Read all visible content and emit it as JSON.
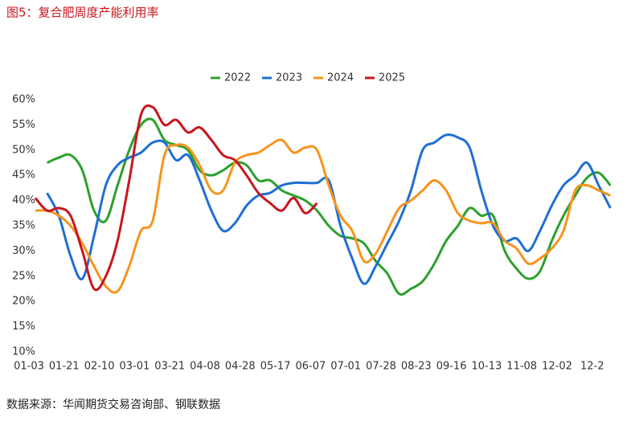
{
  "chart_data": {
    "type": "line",
    "title": "图5：复合肥周度产能利用率",
    "source": "数据来源：华闻期货交易咨询部、钢联数据",
    "categories": [
      "01-03",
      null,
      null,
      "01-21",
      null,
      null,
      "02-10",
      null,
      null,
      "03-01",
      null,
      null,
      "03-21",
      null,
      null,
      "04-08",
      null,
      null,
      "04-28",
      null,
      null,
      "05-17",
      null,
      null,
      "06-07",
      null,
      null,
      "07-01",
      null,
      null,
      "07-28",
      null,
      null,
      "08-23",
      null,
      null,
      "09-16",
      null,
      null,
      "10-13",
      null,
      null,
      "11-08",
      null,
      null,
      "12-02",
      null,
      null,
      "12-2",
      null
    ],
    "series": [
      {
        "name": "2022",
        "color": "#2ca02c",
        "values": [
          null,
          47.5,
          48.5,
          49,
          46,
          38,
          36,
          43,
          50,
          55,
          56,
          52,
          51,
          50,
          46,
          45,
          46,
          47.5,
          47,
          44,
          44,
          42,
          41,
          40,
          38,
          35,
          33,
          32.5,
          31.5,
          28,
          25.5,
          21.5,
          22.5,
          24,
          27.5,
          32,
          35,
          38.5,
          37,
          37,
          30,
          26.5,
          24.5,
          26,
          32,
          37,
          41,
          44.5,
          45.5,
          43
        ]
      },
      {
        "name": "2023",
        "color": "#1f6fd1",
        "values": [
          null,
          41.5,
          37,
          29,
          24.5,
          33,
          43,
          47,
          48.5,
          49.5,
          51.5,
          51.5,
          48,
          49,
          44,
          38,
          34,
          35.5,
          39,
          41,
          41.5,
          43,
          43.5,
          43.5,
          43.5,
          44,
          35,
          28.5,
          23.5,
          27,
          31.5,
          36,
          42,
          50,
          51.5,
          53,
          52.5,
          50.5,
          42,
          35,
          32,
          32.5,
          30,
          34,
          39,
          43,
          45,
          47.5,
          43,
          38.5
        ]
      },
      {
        "name": "2024",
        "color": "#f7941d",
        "values": [
          38,
          38,
          37,
          35,
          31.5,
          27,
          23,
          22,
          27,
          34,
          36,
          49,
          51,
          50.5,
          47,
          42,
          42,
          47.5,
          49,
          49.5,
          51,
          52,
          49.5,
          50.5,
          50,
          43,
          37,
          34,
          28,
          29.5,
          34,
          38.5,
          40,
          42,
          44,
          42,
          37.5,
          36,
          35.5,
          35.5,
          32,
          30.5,
          27.5,
          28.5,
          30.5,
          34,
          42,
          43,
          42,
          41
        ]
      },
      {
        "name": "2025",
        "color": "#c8161d",
        "values": [
          40.5,
          38,
          38.5,
          37,
          30,
          22.5,
          25,
          32,
          44,
          57,
          58.5,
          55,
          56,
          53.5,
          54.5,
          52,
          49,
          48,
          45,
          41.5,
          39.5,
          38,
          40.5,
          37.5,
          39.5,
          null,
          null,
          null,
          null,
          null,
          null,
          null,
          null,
          null,
          null,
          null,
          null,
          null,
          null,
          null,
          null,
          null,
          null,
          null,
          null,
          null,
          null,
          null,
          null,
          null
        ]
      }
    ],
    "ylim": [
      10,
      60
    ],
    "yticks": [
      {
        "value": 10,
        "label": "10%"
      },
      {
        "value": 15,
        "label": "15%"
      },
      {
        "value": 20,
        "label": "20%"
      },
      {
        "value": 25,
        "label": "25%"
      },
      {
        "value": 30,
        "label": "30%"
      },
      {
        "value": 35,
        "label": "35%"
      },
      {
        "value": 40,
        "label": "40%"
      },
      {
        "value": 45,
        "label": "45%"
      },
      {
        "value": 50,
        "label": "50%"
      },
      {
        "value": 55,
        "label": "55%"
      },
      {
        "value": 60,
        "label": "60%"
      }
    ],
    "grid": false
  }
}
